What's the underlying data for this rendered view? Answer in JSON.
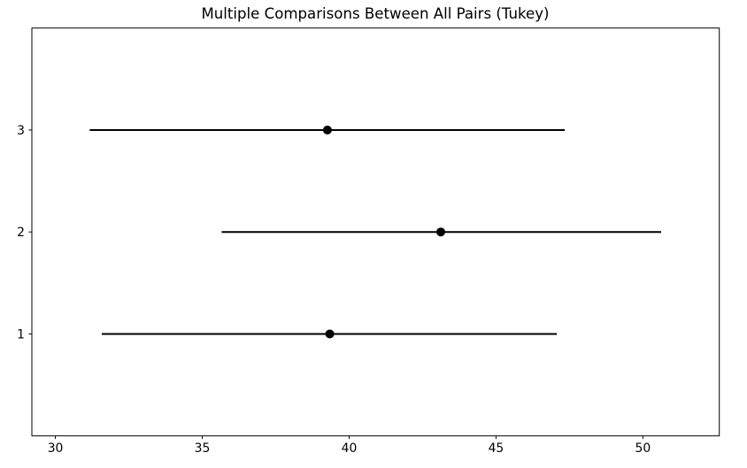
{
  "chart_data": {
    "type": "scatter",
    "title": "Multiple Comparisons Between All Pairs (Tukey)",
    "xlabel": "",
    "ylabel": "",
    "xlim": [
      29.2,
      52.6
    ],
    "ylim": [
      0,
      4
    ],
    "xticks": [
      30,
      35,
      40,
      45,
      50
    ],
    "yticks": [
      1,
      2,
      3
    ],
    "grid": false,
    "legend": null,
    "line_color": "#000000",
    "marker_color": "#000000",
    "background_color": "#ffffff",
    "groups": [
      {
        "label": "1",
        "y": 1,
        "mean": 39.34,
        "ci_lower": 31.58,
        "ci_upper": 47.07
      },
      {
        "label": "2",
        "y": 2,
        "mean": 43.12,
        "ci_lower": 35.66,
        "ci_upper": 50.62
      },
      {
        "label": "3",
        "y": 3,
        "mean": 39.26,
        "ci_lower": 31.17,
        "ci_upper": 47.34
      }
    ]
  }
}
